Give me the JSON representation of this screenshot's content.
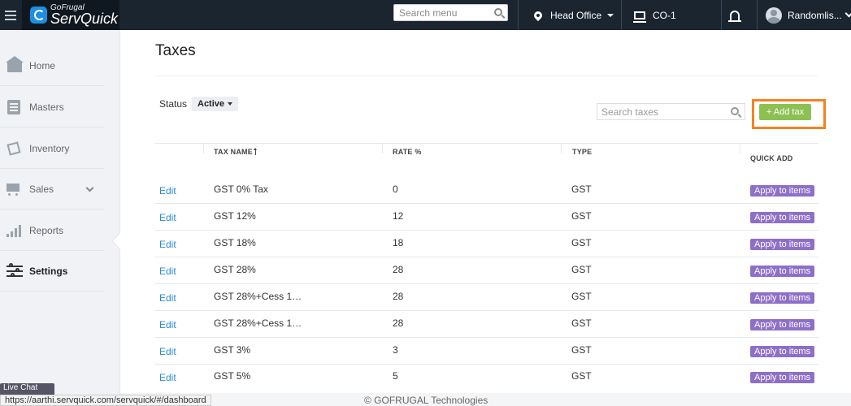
{
  "topbar": {
    "brand_small": "GoFrugal",
    "brand_big": "ServQuick",
    "search_placeholder": "Search menu",
    "location": "Head Office",
    "counter": "CO-1",
    "user": "Randomlis..."
  },
  "sidebar": {
    "items": [
      {
        "label": "Home",
        "icon": "home-icon"
      },
      {
        "label": "Masters",
        "icon": "masters-icon"
      },
      {
        "label": "Inventory",
        "icon": "inventory-icon"
      },
      {
        "label": "Sales",
        "icon": "cart-icon"
      },
      {
        "label": "Reports",
        "icon": "bar-chart-icon"
      },
      {
        "label": "Settings",
        "icon": "sliders-icon"
      }
    ]
  },
  "page": {
    "title": "Taxes",
    "status_label": "Status",
    "status_value": "Active",
    "search_placeholder": "Search taxes",
    "add_button": "+ Add tax"
  },
  "table": {
    "headers": {
      "tax_name": "TAX NAME",
      "rate": "RATE %",
      "type": "TYPE",
      "quick_add": "QUICK ADD"
    },
    "rows": [
      {
        "edit": "Edit",
        "name": "GST 0% Tax",
        "rate": "0",
        "type": "GST",
        "action": "Apply to items"
      },
      {
        "edit": "Edit",
        "name": "GST 12%",
        "rate": "12",
        "type": "GST",
        "action": "Apply to items"
      },
      {
        "edit": "Edit",
        "name": "GST 18%",
        "rate": "18",
        "type": "GST",
        "action": "Apply to items"
      },
      {
        "edit": "Edit",
        "name": "GST 28%",
        "rate": "28",
        "type": "GST",
        "action": "Apply to items"
      },
      {
        "edit": "Edit",
        "name": "GST 28%+Cess 1…",
        "rate": "28",
        "type": "GST",
        "action": "Apply to items"
      },
      {
        "edit": "Edit",
        "name": "GST 28%+Cess 1…",
        "rate": "28",
        "type": "GST",
        "action": "Apply to items"
      },
      {
        "edit": "Edit",
        "name": "GST 3%",
        "rate": "3",
        "type": "GST",
        "action": "Apply to items"
      },
      {
        "edit": "Edit",
        "name": "GST 5%",
        "rate": "5",
        "type": "GST",
        "action": "Apply to items"
      }
    ]
  },
  "footer": {
    "copyright": "© GOFRUGAL Technologies",
    "status_url": "https://aarthi.servquick.com/servquick/#/dashboard",
    "livechat": "Live Chat"
  },
  "colors": {
    "topbar": "#1b2530",
    "add_button": "#8cc152",
    "apply_button": "#8e6fc8",
    "edit_link": "#2a8ad8",
    "highlight": "#f58220"
  }
}
